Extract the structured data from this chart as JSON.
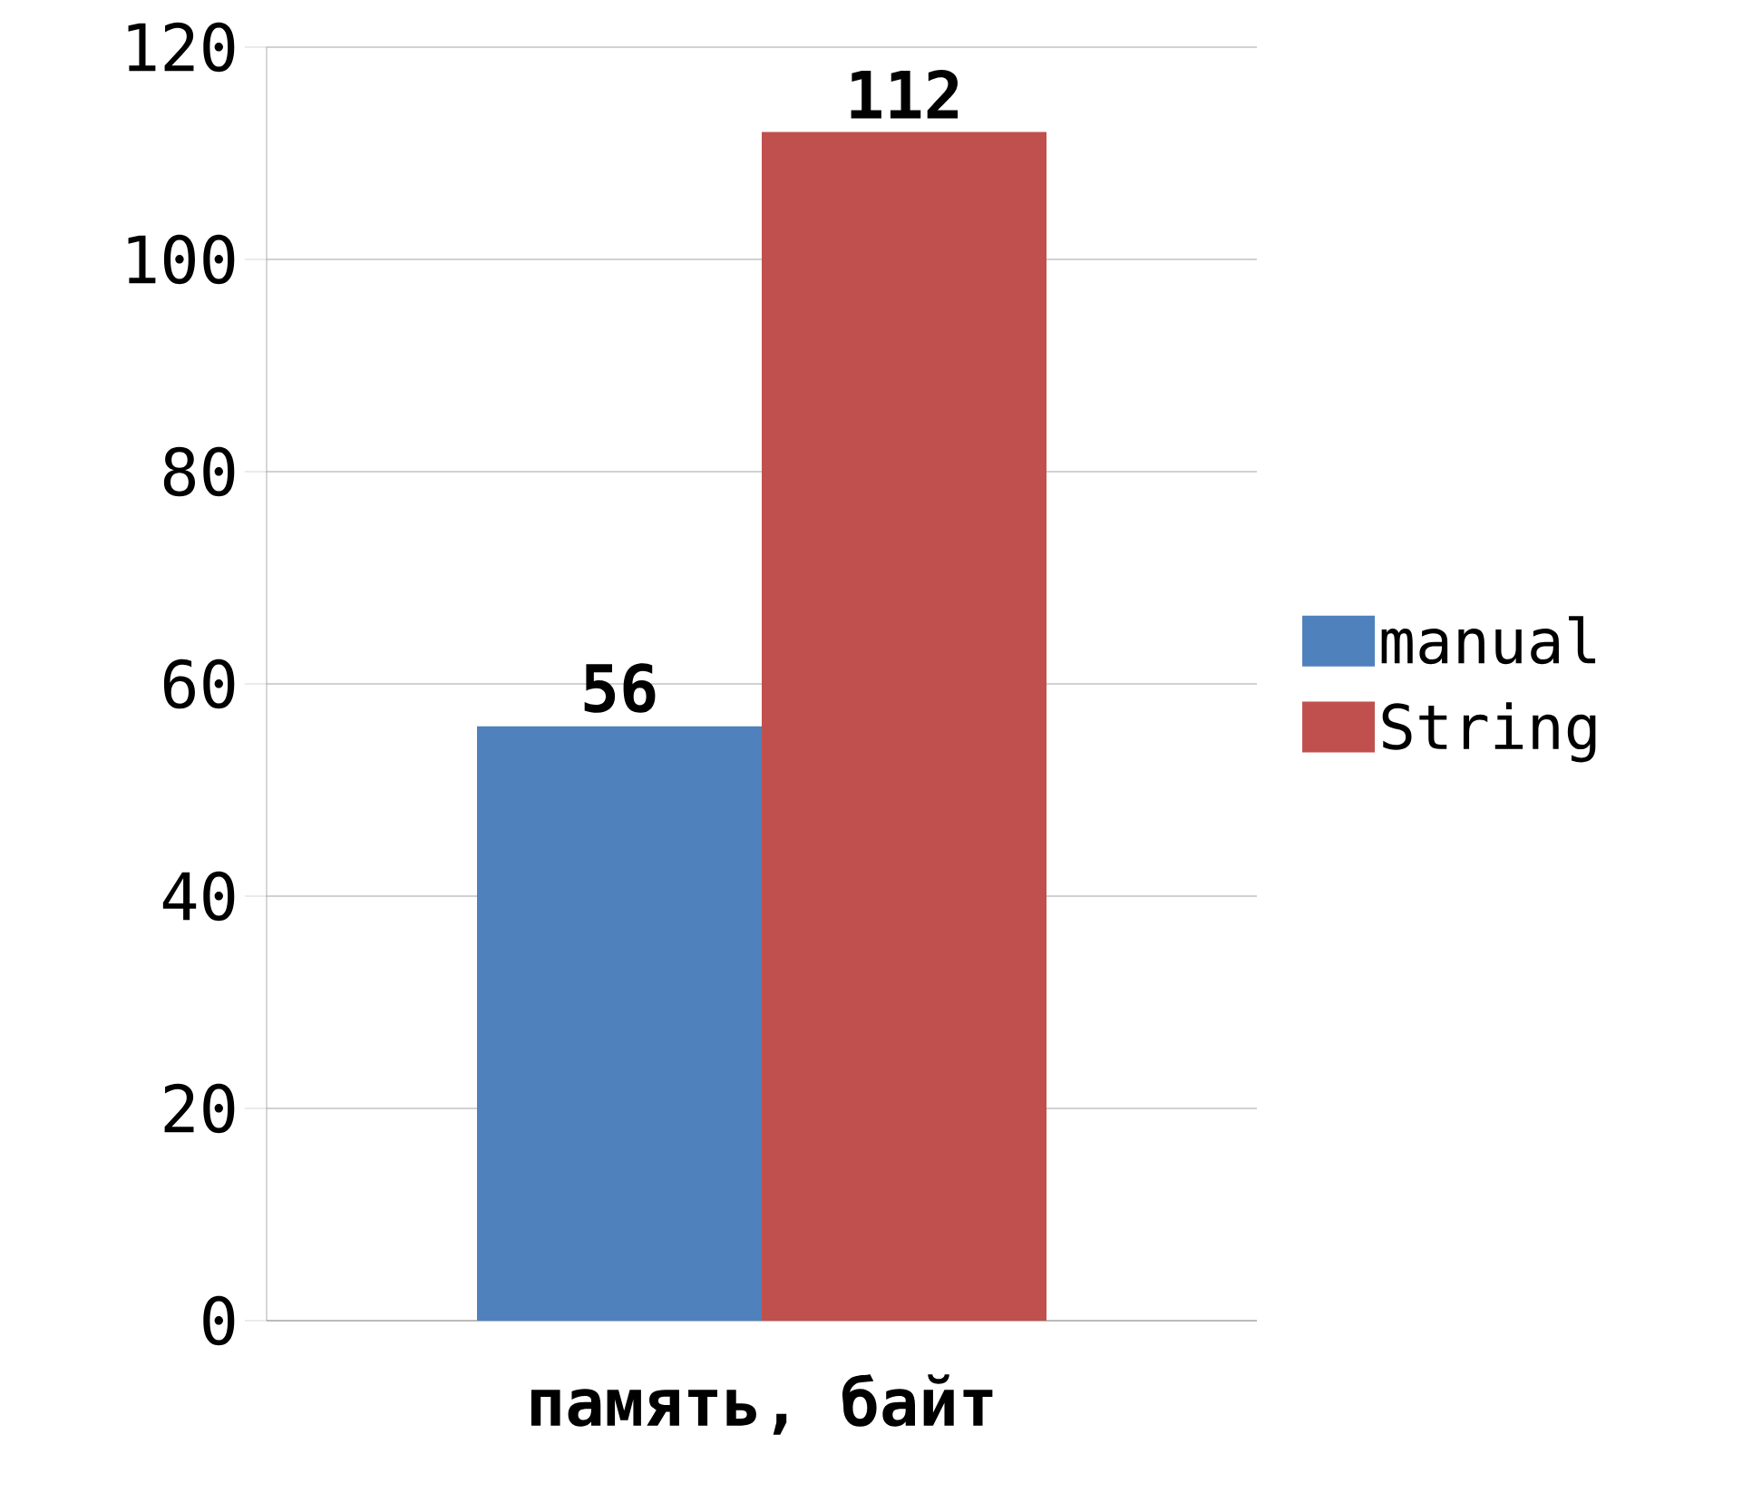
{
  "chart_data": {
    "type": "bar",
    "categories": [
      "память, байт"
    ],
    "series": [
      {
        "name": "manual",
        "color": "#4f81bd",
        "values": [
          56
        ]
      },
      {
        "name": "String",
        "color": "#c0504d",
        "values": [
          112
        ]
      }
    ],
    "ylim": [
      0,
      120
    ],
    "yticks": [
      0,
      20,
      40,
      60,
      80,
      100,
      120
    ],
    "grid": "y",
    "legend": "right",
    "data_labels": true
  }
}
